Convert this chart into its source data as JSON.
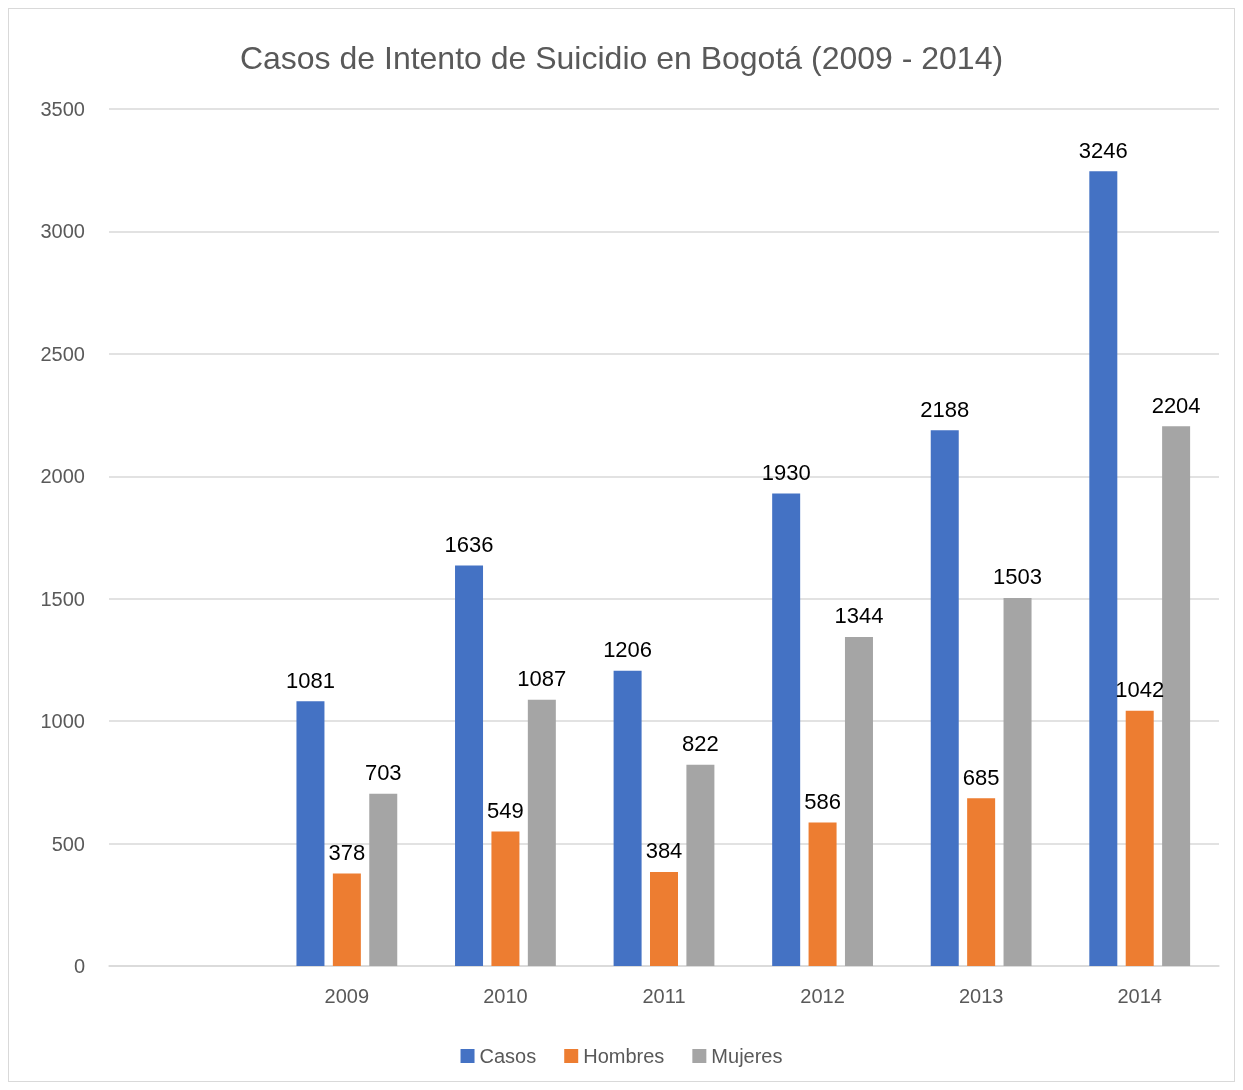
{
  "chart_data": {
    "type": "bar",
    "title": "Casos de Intento de Suicidio en Bogotá (2009 - 2014)",
    "categories": [
      null,
      "2009",
      "2010",
      "2011",
      "2012",
      "2013",
      "2014"
    ],
    "series": [
      {
        "name": "Casos",
        "color": "#4472c4",
        "values": [
          null,
          1081,
          1636,
          1206,
          1930,
          2188,
          3246
        ]
      },
      {
        "name": "Hombres",
        "color": "#ed7d31",
        "values": [
          null,
          378,
          549,
          384,
          586,
          685,
          1042
        ]
      },
      {
        "name": "Mujeres",
        "color": "#a5a5a5",
        "values": [
          null,
          703,
          1087,
          822,
          1344,
          1503,
          2204
        ]
      }
    ],
    "ylim": [
      0,
      3500
    ],
    "yticks": [
      0,
      500,
      1000,
      1500,
      2000,
      2500,
      3000,
      3500
    ],
    "grid": "y",
    "legend": "bottom",
    "data_labels": true
  }
}
